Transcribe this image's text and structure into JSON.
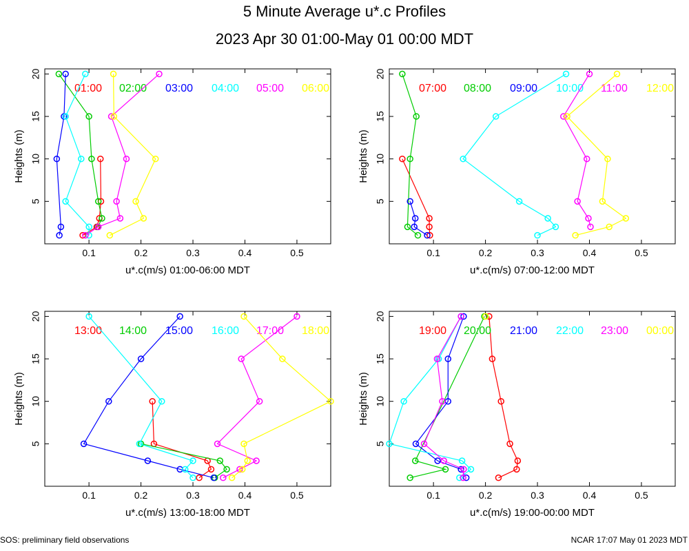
{
  "title": "5 Minute Average u*.c Profiles",
  "subtitle": "2023 Apr 30 01:00-May 01 00:00 MDT",
  "footer_left": "SOS: preliminary field observations",
  "footer_right": "NCAR 17:07 May 01 2023 MDT",
  "colors": [
    "#ff0000",
    "#00cc00",
    "#0000ff",
    "#00ffff",
    "#ff00ff",
    "#ffff00"
  ],
  "chart_data": [
    {
      "type": "line",
      "xlabel": "u*.c(m/s) 01:00-06:00 MDT",
      "ylabel": "Heights (m)",
      "xlim": [
        0.015,
        0.565
      ],
      "ylim": [
        0,
        20.6
      ],
      "xticks": [
        "0.1",
        "0.2",
        "0.3",
        "0.4",
        "0.5"
      ],
      "yticks": [
        "5",
        "10",
        "15",
        "20"
      ],
      "heights": [
        1,
        2,
        3,
        5,
        10,
        15,
        20
      ],
      "series": [
        {
          "name": "01:00",
          "values": [
            0.088,
            0.115,
            0.12,
            0.123,
            0.122,
            null,
            null
          ]
        },
        {
          "name": "02:00",
          "values": [
            null,
            0.117,
            0.125,
            0.118,
            0.105,
            0.1,
            0.042
          ]
        },
        {
          "name": "03:00",
          "values": [
            0.043,
            0.046,
            null,
            null,
            0.038,
            0.052,
            0.055
          ]
        },
        {
          "name": "04:00",
          "values": [
            0.1,
            0.1,
            null,
            0.055,
            0.085,
            0.055,
            0.093
          ]
        },
        {
          "name": "05:00",
          "values": [
            0.093,
            0.118,
            0.16,
            0.153,
            0.172,
            0.143,
            0.235
          ]
        },
        {
          "name": "06:00",
          "values": [
            0.14,
            null,
            0.205,
            0.19,
            0.228,
            0.148,
            0.147
          ]
        }
      ]
    },
    {
      "type": "line",
      "xlabel": "u*.c(m/s) 07:00-12:00 MDT",
      "ylabel": "Heights (m)",
      "xlim": [
        0.015,
        0.565
      ],
      "ylim": [
        0,
        20.6
      ],
      "xticks": [
        "0.1",
        "0.2",
        "0.3",
        "0.4",
        "0.5"
      ],
      "yticks": [
        "5",
        "10",
        "15",
        "20"
      ],
      "heights": [
        1,
        2,
        3,
        5,
        10,
        15,
        20
      ],
      "series": [
        {
          "name": "07:00",
          "values": [
            0.093,
            0.092,
            0.092,
            null,
            0.04,
            null,
            null
          ]
        },
        {
          "name": "08:00",
          "values": [
            0.07,
            0.05,
            null,
            null,
            0.055,
            0.067,
            0.04
          ]
        },
        {
          "name": "09:00",
          "values": [
            0.088,
            0.063,
            0.065,
            0.055,
            null,
            null,
            null
          ]
        },
        {
          "name": "10:00",
          "values": [
            0.3,
            0.335,
            0.32,
            0.265,
            0.157,
            0.22,
            0.355
          ]
        },
        {
          "name": "11:00",
          "values": [
            null,
            0.402,
            0.398,
            0.377,
            0.395,
            0.35,
            0.4
          ]
        },
        {
          "name": "12:00",
          "values": [
            0.373,
            0.438,
            0.47,
            0.425,
            0.435,
            0.357,
            0.453
          ]
        }
      ]
    },
    {
      "type": "line",
      "xlabel": "u*.c(m/s) 13:00-18:00 MDT",
      "ylabel": "Heights (m)",
      "xlim": [
        0.015,
        0.565
      ],
      "ylim": [
        0,
        20.6
      ],
      "xticks": [
        "0.1",
        "0.2",
        "0.3",
        "0.4",
        "0.5"
      ],
      "yticks": [
        "5",
        "10",
        "15",
        "20"
      ],
      "heights": [
        1,
        2,
        3,
        5,
        10,
        15,
        20
      ],
      "series": [
        {
          "name": "13:00",
          "values": [
            0.312,
            0.335,
            0.328,
            0.225,
            0.222,
            null,
            null
          ]
        },
        {
          "name": "14:00",
          "values": [
            0.342,
            0.365,
            0.352,
            0.2,
            null,
            null,
            null
          ]
        },
        {
          "name": "15:00",
          "values": [
            0.34,
            0.275,
            0.213,
            0.09,
            0.138,
            0.2,
            0.275
          ]
        },
        {
          "name": "16:00",
          "values": [
            0.3,
            0.285,
            0.3,
            0.197,
            0.24,
            null,
            0.1
          ]
        },
        {
          "name": "17:00",
          "values": [
            0.358,
            0.39,
            0.422,
            0.347,
            0.428,
            0.393,
            0.5
          ]
        },
        {
          "name": "18:00",
          "values": [
            0.375,
            0.395,
            0.405,
            0.398,
            0.565,
            0.472,
            0.398
          ]
        }
      ]
    },
    {
      "type": "line",
      "xlabel": "u*.c(m/s) 19:00-00:00 MDT",
      "ylabel": "Heights (m)",
      "xlim": [
        0.015,
        0.565
      ],
      "ylim": [
        0,
        20.6
      ],
      "xticks": [
        "0.1",
        "0.2",
        "0.3",
        "0.4",
        "0.5"
      ],
      "yticks": [
        "5",
        "10",
        "15",
        "20"
      ],
      "heights": [
        1,
        2,
        3,
        5,
        10,
        15,
        20
      ],
      "series": [
        {
          "name": "19:00",
          "values": [
            0.225,
            0.26,
            0.262,
            0.247,
            0.23,
            0.213,
            0.207
          ]
        },
        {
          "name": "20:00",
          "values": [
            0.055,
            0.123,
            0.065,
            null,
            null,
            null,
            0.198
          ]
        },
        {
          "name": "21:00",
          "values": [
            0.163,
            0.153,
            0.108,
            0.066,
            0.128,
            0.128,
            0.158
          ]
        },
        {
          "name": "22:00",
          "values": [
            0.15,
            0.172,
            0.155,
            0.015,
            0.043,
            0.11,
            0.153
          ]
        },
        {
          "name": "23:00",
          "values": [
            0.157,
            0.158,
            0.12,
            0.082,
            0.117,
            0.107,
            0.153
          ]
        },
        {
          "name": "00:00",
          "values": [
            null,
            null,
            null,
            null,
            null,
            null,
            0.2
          ]
        }
      ]
    }
  ]
}
